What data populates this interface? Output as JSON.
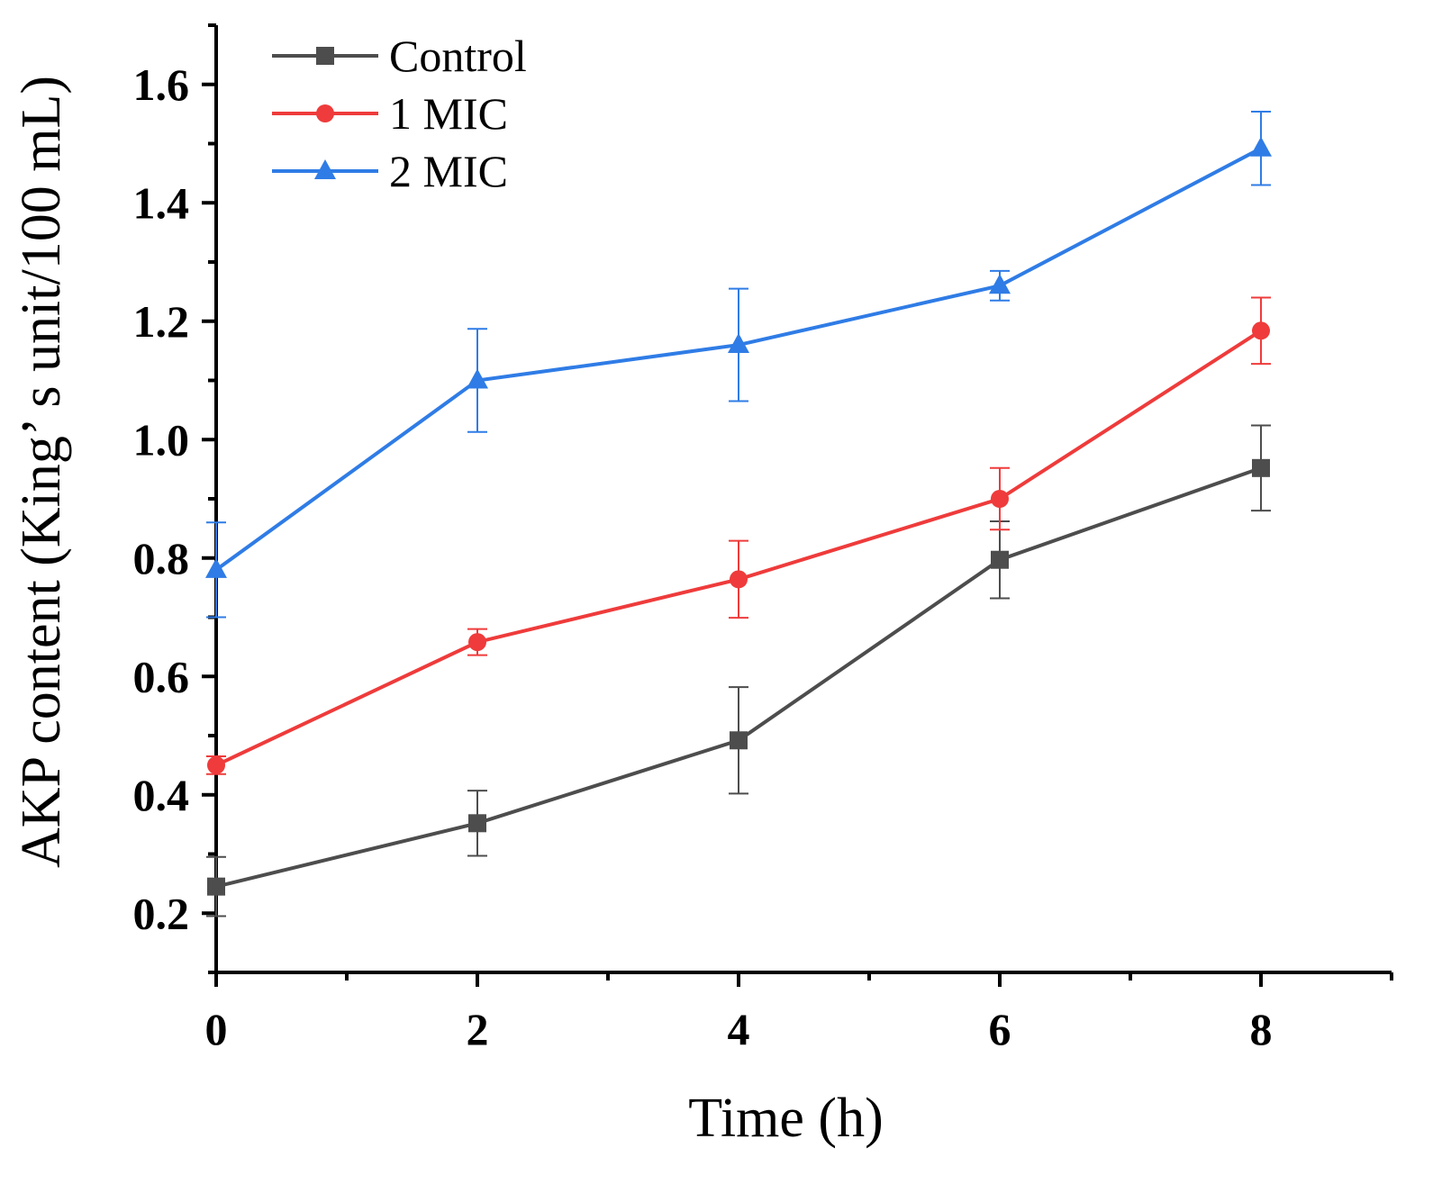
{
  "chart_data": {
    "type": "line",
    "title": "",
    "xlabel": "Time (h)",
    "ylabel": "AKP content (King’ s unit/100 mL)",
    "xlim": [
      0,
      9
    ],
    "ylim": [
      0.1,
      1.7
    ],
    "x_ticks": [
      0,
      2,
      4,
      6,
      8
    ],
    "x_tick_labels": [
      "0",
      "2",
      "4",
      "6",
      "8"
    ],
    "x_minor_ticks": [
      1,
      3,
      5,
      7,
      9
    ],
    "y_ticks": [
      0.2,
      0.4,
      0.6,
      0.8,
      1.0,
      1.2,
      1.4,
      1.6
    ],
    "y_tick_labels": [
      "0.2",
      "0.4",
      "0.6",
      "0.8",
      "1.0",
      "1.2",
      "1.4",
      "1.6"
    ],
    "y_minor_ticks": [
      0.1,
      0.3,
      0.5,
      0.7,
      0.9,
      1.1,
      1.3,
      1.5,
      1.7
    ],
    "grid": false,
    "legend_position": "top-left",
    "x": [
      0,
      2,
      4,
      6,
      8
    ],
    "series": [
      {
        "name": "Control",
        "color": "#4d4d4d",
        "marker": "square",
        "values": [
          0.245,
          0.352,
          0.492,
          0.797,
          0.952
        ],
        "errors": [
          0.05,
          0.055,
          0.09,
          0.065,
          0.072
        ]
      },
      {
        "name": "1 MIC",
        "color": "#ef3b3b",
        "marker": "circle",
        "values": [
          0.45,
          0.658,
          0.764,
          0.9,
          1.184
        ],
        "errors": [
          0.015,
          0.022,
          0.065,
          0.052,
          0.056
        ]
      },
      {
        "name": "2 MIC",
        "color": "#2f7ce6",
        "marker": "triangle",
        "values": [
          0.78,
          1.1,
          1.16,
          1.26,
          1.492
        ],
        "errors": [
          0.08,
          0.087,
          0.095,
          0.025,
          0.062
        ]
      }
    ]
  }
}
